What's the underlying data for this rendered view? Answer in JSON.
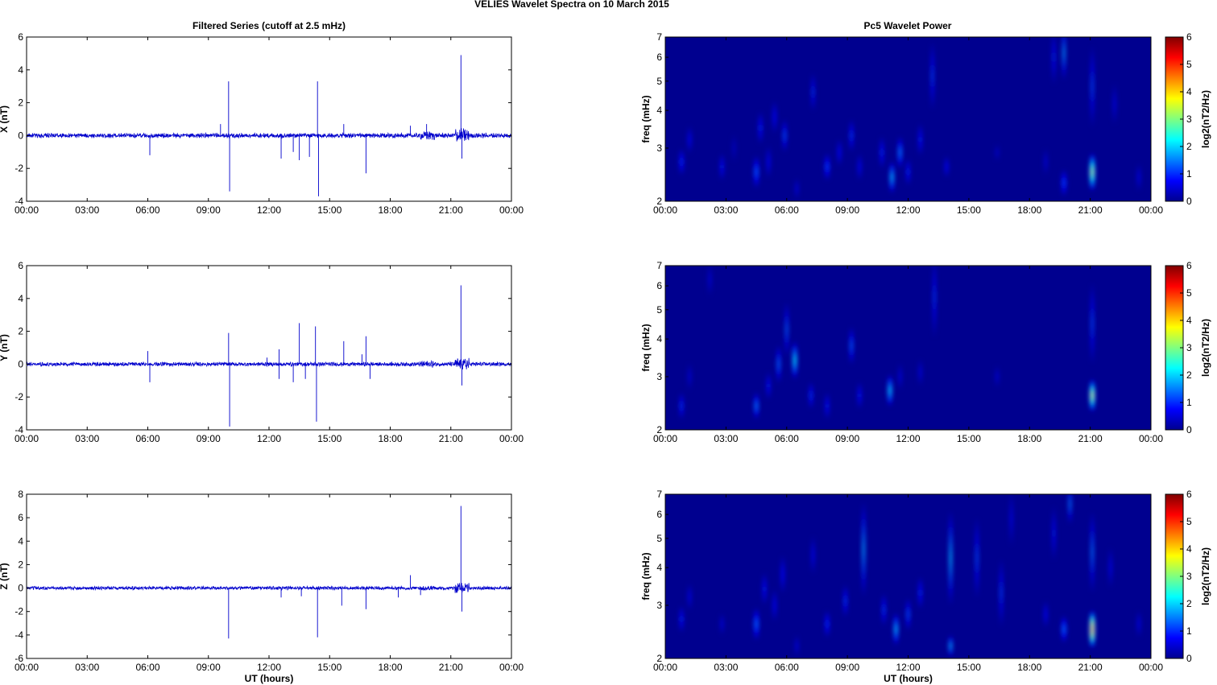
{
  "figure": {
    "title": "VELIES Wavelet Spectra on 10 March      2015",
    "left_column_title": "Filtered Series (cutoff at 2.5 mHz)",
    "right_column_title": "Pc5 Wavelet Power",
    "x_axis_label": "UT (hours)",
    "colorbar_label": "log2(nT2/Hz)",
    "colors": {
      "series_line": "#0000cc",
      "spectrogram_background": "#00008f"
    }
  },
  "chart_data": [
    {
      "type": "line",
      "ylabel": "X (nT)",
      "ylim": [
        -4,
        6
      ],
      "yticks": [
        -4,
        -2,
        0,
        2,
        4,
        6
      ],
      "xlim": [
        0,
        24
      ],
      "xticks": [
        "00:00",
        "03:00",
        "06:00",
        "09:00",
        "12:00",
        "15:00",
        "18:00",
        "21:00",
        "00:00"
      ],
      "noise_amplitude": 0.12,
      "spikes": [
        [
          6.1,
          -1.2
        ],
        [
          9.6,
          0.7
        ],
        [
          10.0,
          3.3
        ],
        [
          10.05,
          -3.4
        ],
        [
          12.6,
          -1.4
        ],
        [
          13.2,
          -1.0
        ],
        [
          13.5,
          -1.5
        ],
        [
          14.0,
          -1.3
        ],
        [
          14.4,
          3.3
        ],
        [
          14.45,
          -3.7
        ],
        [
          15.7,
          0.7
        ],
        [
          16.8,
          -2.3
        ],
        [
          19.0,
          0.6
        ],
        [
          19.8,
          0.7
        ],
        [
          21.5,
          4.9
        ],
        [
          21.55,
          -1.4
        ]
      ]
    },
    {
      "type": "line",
      "ylabel": "Y (nT)",
      "ylim": [
        -4,
        6
      ],
      "yticks": [
        -4,
        -2,
        0,
        2,
        4,
        6
      ],
      "xlim": [
        0,
        24
      ],
      "xticks": [
        "00:00",
        "03:00",
        "06:00",
        "09:00",
        "12:00",
        "15:00",
        "18:00",
        "21:00",
        "00:00"
      ],
      "noise_amplitude": 0.1,
      "spikes": [
        [
          6.1,
          -1.1
        ],
        [
          6.0,
          0.8
        ],
        [
          10.0,
          1.9
        ],
        [
          10.05,
          -3.8
        ],
        [
          11.9,
          0.4
        ],
        [
          12.5,
          0.9
        ],
        [
          12.5,
          -0.9
        ],
        [
          13.2,
          -1.1
        ],
        [
          13.5,
          2.5
        ],
        [
          13.8,
          -0.9
        ],
        [
          14.3,
          2.3
        ],
        [
          14.35,
          -3.5
        ],
        [
          15.7,
          1.4
        ],
        [
          16.6,
          0.6
        ],
        [
          16.8,
          1.7
        ],
        [
          17.0,
          -0.9
        ],
        [
          21.5,
          4.8
        ],
        [
          21.55,
          -1.3
        ]
      ]
    },
    {
      "type": "line",
      "ylabel": "Z (nT)",
      "ylim": [
        -6,
        8
      ],
      "yticks": [
        -6,
        -4,
        -2,
        0,
        2,
        4,
        6,
        8
      ],
      "xlim": [
        0,
        24
      ],
      "xticks": [
        "00:00",
        "03:00",
        "06:00",
        "09:00",
        "12:00",
        "15:00",
        "18:00",
        "21:00",
        "00:00"
      ],
      "noise_amplitude": 0.12,
      "spikes": [
        [
          10.0,
          -4.3
        ],
        [
          12.6,
          -0.8
        ],
        [
          13.6,
          -0.7
        ],
        [
          14.4,
          -4.2
        ],
        [
          15.6,
          -1.5
        ],
        [
          16.8,
          -1.8
        ],
        [
          18.4,
          -0.8
        ],
        [
          19.0,
          1.1
        ],
        [
          19.5,
          -0.6
        ],
        [
          21.5,
          7.0
        ],
        [
          21.55,
          -2.0
        ]
      ]
    },
    {
      "type": "heatmap",
      "ylabel": "freq (mHz)",
      "yscale": "log",
      "ylim": [
        2,
        7
      ],
      "yticks": [
        2,
        3,
        4,
        5,
        6,
        7
      ],
      "xlim": [
        0,
        24
      ],
      "xticks": [
        "00:00",
        "03:00",
        "06:00",
        "09:00",
        "12:00",
        "15:00",
        "18:00",
        "21:00",
        "00:00"
      ],
      "colorbar": {
        "range": [
          0,
          6
        ],
        "ticks": [
          0,
          1,
          2,
          3,
          4,
          5,
          6
        ]
      },
      "blobs": [
        [
          0.8,
          2.7,
          0.12,
          0.1,
          1.3
        ],
        [
          1.2,
          3.2,
          0.1,
          0.1,
          1.0
        ],
        [
          2.8,
          2.6,
          0.1,
          0.1,
          1.2
        ],
        [
          3.4,
          3.0,
          0.08,
          0.1,
          0.6
        ],
        [
          4.5,
          2.5,
          0.14,
          0.12,
          1.6
        ],
        [
          4.7,
          3.5,
          0.1,
          0.12,
          1.3
        ],
        [
          5.1,
          2.7,
          0.1,
          0.12,
          1.0
        ],
        [
          5.4,
          3.8,
          0.1,
          0.12,
          1.1
        ],
        [
          5.9,
          3.3,
          0.1,
          0.12,
          1.6
        ],
        [
          6.5,
          2.2,
          0.08,
          0.08,
          0.9
        ],
        [
          7.3,
          4.6,
          0.08,
          0.14,
          1.4
        ],
        [
          8.0,
          2.6,
          0.14,
          0.1,
          1.4
        ],
        [
          8.6,
          2.9,
          0.1,
          0.1,
          1.1
        ],
        [
          9.2,
          3.3,
          0.1,
          0.12,
          1.4
        ],
        [
          9.6,
          2.6,
          0.1,
          0.1,
          1.0
        ],
        [
          10.7,
          2.9,
          0.1,
          0.12,
          1.3
        ],
        [
          11.2,
          2.4,
          0.12,
          0.12,
          2.4
        ],
        [
          11.6,
          2.9,
          0.12,
          0.12,
          1.9
        ],
        [
          12.0,
          2.5,
          0.1,
          0.1,
          1.3
        ],
        [
          12.6,
          3.2,
          0.1,
          0.12,
          1.2
        ],
        [
          13.2,
          5.2,
          0.06,
          0.25,
          1.5
        ],
        [
          13.9,
          2.6,
          0.1,
          0.08,
          1.1
        ],
        [
          16.4,
          2.9,
          0.08,
          0.06,
          0.7
        ],
        [
          18.8,
          2.7,
          0.08,
          0.1,
          0.8
        ],
        [
          19.2,
          6.0,
          0.05,
          0.2,
          1.3
        ],
        [
          19.7,
          2.3,
          0.14,
          0.1,
          1.4
        ],
        [
          19.7,
          6.2,
          0.06,
          0.2,
          2.3
        ],
        [
          21.1,
          2.5,
          0.14,
          0.14,
          4.1
        ],
        [
          21.1,
          4.8,
          0.05,
          0.3,
          1.6
        ],
        [
          22.2,
          4.2,
          0.06,
          0.15,
          0.9
        ],
        [
          23.4,
          2.4,
          0.08,
          0.1,
          1.0
        ]
      ]
    },
    {
      "type": "heatmap",
      "ylabel": "freq (mHz)",
      "yscale": "log",
      "ylim": [
        2,
        7
      ],
      "yticks": [
        2,
        3,
        4,
        5,
        6,
        7
      ],
      "xlim": [
        0,
        24
      ],
      "xticks": [
        "00:00",
        "03:00",
        "06:00",
        "09:00",
        "12:00",
        "15:00",
        "18:00",
        "21:00",
        "00:00"
      ],
      "colorbar": {
        "range": [
          0,
          6
        ],
        "ticks": [
          0,
          1,
          2,
          3,
          4,
          5,
          6
        ]
      },
      "blobs": [
        [
          0.8,
          2.4,
          0.1,
          0.1,
          1.4
        ],
        [
          1.2,
          3.0,
          0.08,
          0.1,
          0.8
        ],
        [
          2.2,
          6.3,
          0.04,
          0.12,
          0.8
        ],
        [
          4.5,
          2.4,
          0.12,
          0.1,
          1.9
        ],
        [
          5.1,
          2.8,
          0.1,
          0.1,
          1.2
        ],
        [
          5.6,
          3.3,
          0.1,
          0.14,
          1.8
        ],
        [
          6.0,
          4.3,
          0.08,
          0.2,
          1.8
        ],
        [
          6.4,
          3.4,
          0.12,
          0.14,
          2.8
        ],
        [
          7.2,
          2.6,
          0.1,
          0.1,
          1.4
        ],
        [
          8.0,
          2.4,
          0.1,
          0.1,
          1.2
        ],
        [
          9.2,
          3.8,
          0.1,
          0.14,
          1.7
        ],
        [
          9.6,
          2.6,
          0.1,
          0.1,
          1.2
        ],
        [
          11.1,
          2.7,
          0.12,
          0.12,
          2.6
        ],
        [
          11.6,
          3.0,
          0.08,
          0.1,
          0.9
        ],
        [
          12.6,
          3.1,
          0.08,
          0.1,
          0.9
        ],
        [
          13.3,
          5.5,
          0.05,
          0.3,
          1.4
        ],
        [
          16.4,
          3.0,
          0.06,
          0.08,
          0.8
        ],
        [
          21.1,
          2.6,
          0.14,
          0.12,
          4.4
        ],
        [
          21.1,
          4.5,
          0.05,
          0.3,
          1.6
        ]
      ]
    },
    {
      "type": "heatmap",
      "ylabel": "freq (mHz)",
      "yscale": "log",
      "ylim": [
        2,
        7
      ],
      "yticks": [
        2,
        3,
        4,
        5,
        6,
        7
      ],
      "xlim": [
        0,
        24
      ],
      "xticks": [
        "00:00",
        "03:00",
        "06:00",
        "09:00",
        "12:00",
        "15:00",
        "18:00",
        "21:00",
        "00:00"
      ],
      "colorbar": {
        "range": [
          0,
          6
        ],
        "ticks": [
          0,
          1,
          2,
          3,
          4,
          5,
          6
        ]
      },
      "blobs": [
        [
          0.8,
          2.7,
          0.1,
          0.1,
          1.3
        ],
        [
          1.2,
          3.2,
          0.08,
          0.1,
          1.0
        ],
        [
          2.8,
          2.6,
          0.08,
          0.08,
          0.9
        ],
        [
          4.5,
          2.6,
          0.14,
          0.12,
          1.7
        ],
        [
          4.9,
          3.4,
          0.1,
          0.12,
          1.2
        ],
        [
          5.4,
          3.0,
          0.1,
          0.12,
          1.0
        ],
        [
          5.8,
          3.8,
          0.1,
          0.14,
          1.1
        ],
        [
          6.5,
          2.2,
          0.08,
          0.08,
          0.9
        ],
        [
          7.3,
          4.4,
          0.08,
          0.14,
          1.1
        ],
        [
          8.0,
          2.6,
          0.12,
          0.1,
          1.3
        ],
        [
          8.9,
          3.1,
          0.1,
          0.12,
          1.4
        ],
        [
          9.8,
          4.6,
          0.05,
          0.35,
          2.4
        ],
        [
          10.8,
          2.9,
          0.1,
          0.12,
          1.4
        ],
        [
          11.4,
          2.5,
          0.12,
          0.12,
          2.4
        ],
        [
          12.0,
          2.8,
          0.1,
          0.12,
          1.6
        ],
        [
          12.6,
          3.3,
          0.1,
          0.12,
          1.3
        ],
        [
          14.1,
          4.3,
          0.06,
          0.35,
          2.6
        ],
        [
          14.1,
          2.2,
          0.1,
          0.08,
          2.4
        ],
        [
          15.4,
          4.3,
          0.05,
          0.3,
          1.6
        ],
        [
          16.6,
          3.3,
          0.06,
          0.25,
          1.5
        ],
        [
          17.1,
          5.8,
          0.04,
          0.2,
          0.9
        ],
        [
          18.8,
          2.8,
          0.1,
          0.1,
          1.0
        ],
        [
          19.2,
          5.2,
          0.05,
          0.2,
          1.2
        ],
        [
          19.7,
          2.5,
          0.14,
          0.1,
          1.7
        ],
        [
          20.0,
          6.5,
          0.05,
          0.15,
          2.0
        ],
        [
          21.1,
          2.5,
          0.14,
          0.14,
          5.6
        ],
        [
          21.1,
          4.5,
          0.05,
          0.3,
          2.0
        ],
        [
          22.0,
          4.0,
          0.06,
          0.15,
          1.0
        ],
        [
          23.4,
          2.6,
          0.08,
          0.1,
          1.0
        ]
      ]
    }
  ]
}
